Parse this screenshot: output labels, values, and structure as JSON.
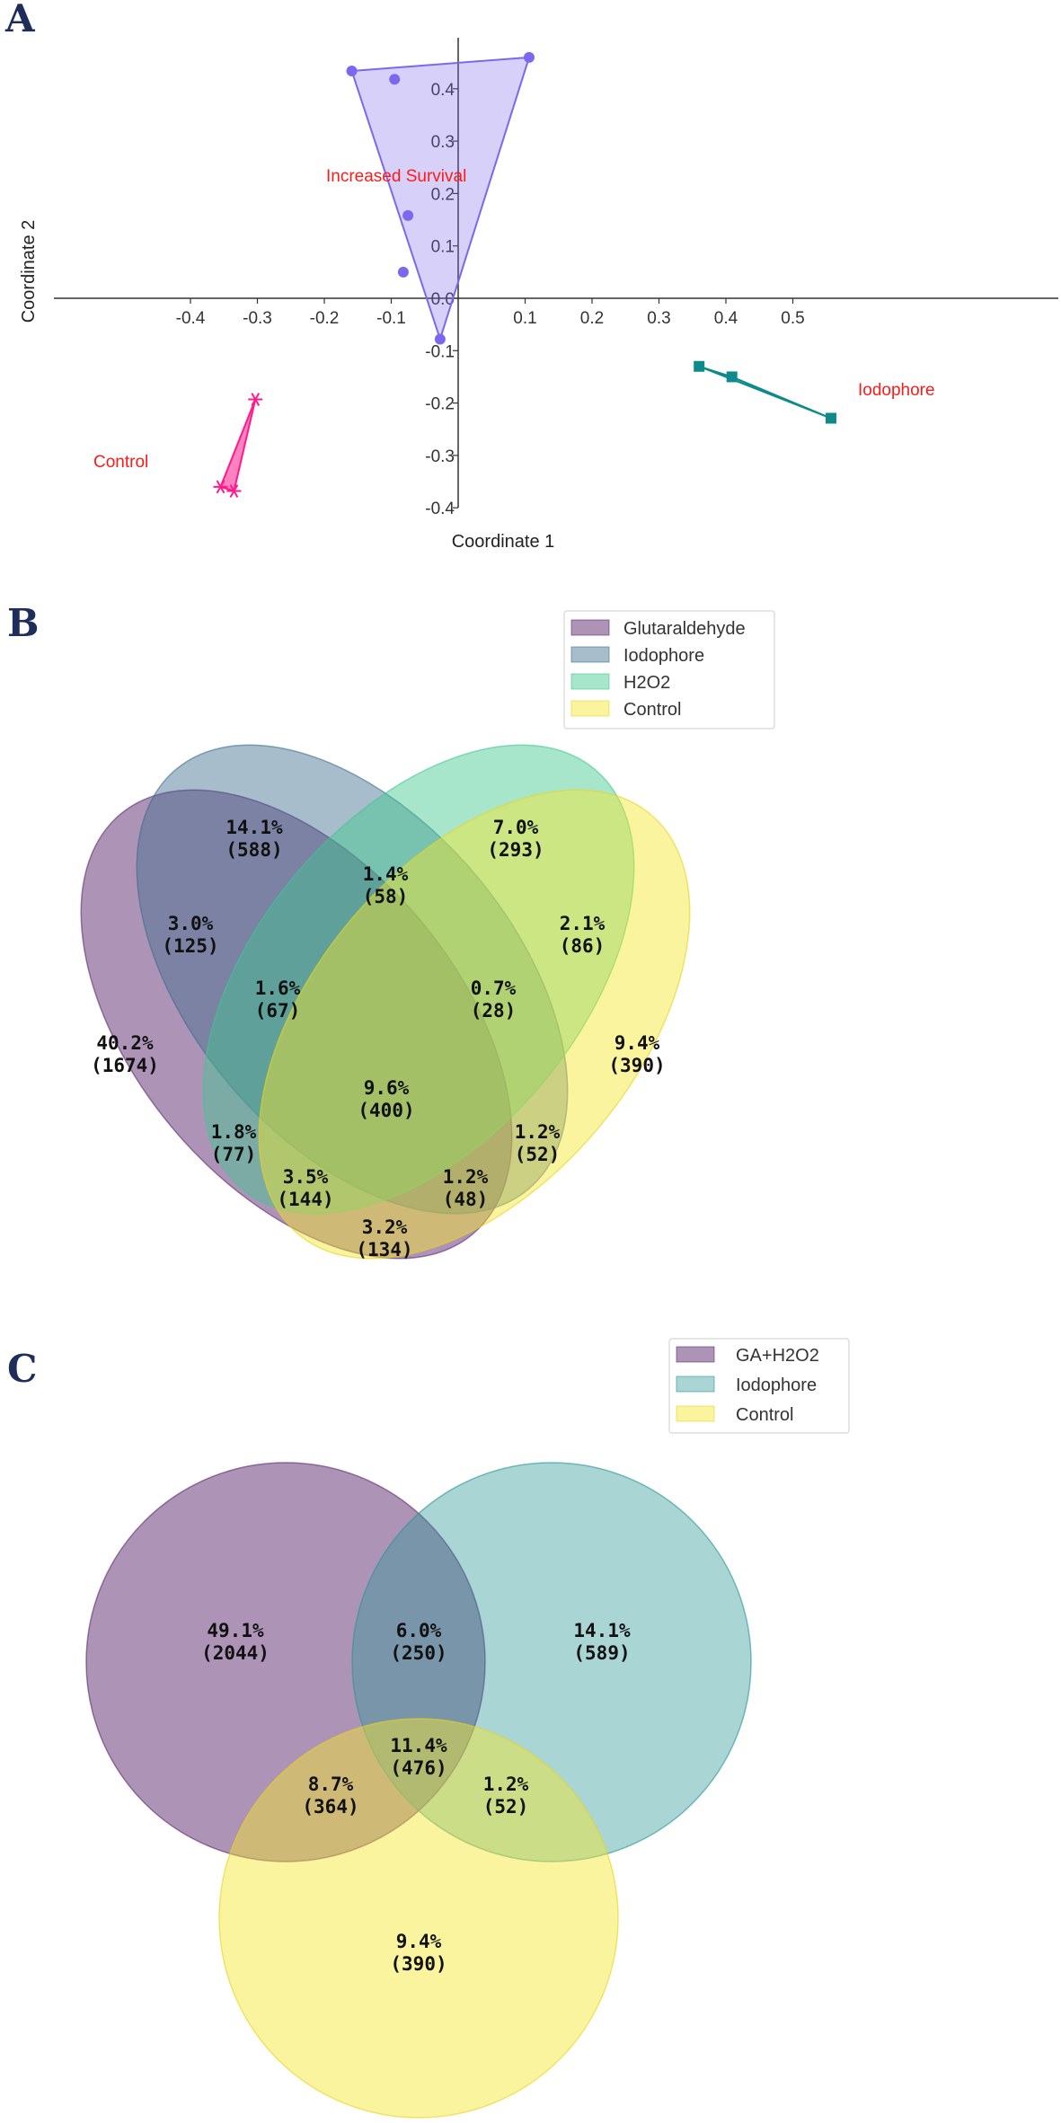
{
  "panels": {
    "a": "A",
    "b": "B",
    "c": "C"
  },
  "chart_data": [
    {
      "type": "scatter",
      "panel": "A",
      "xlabel": "Coordinate 1",
      "ylabel": "Coordinate 2",
      "xlim": [
        -0.4,
        0.6
      ],
      "ylim": [
        -0.4,
        0.46
      ],
      "xticks": [
        -0.4,
        -0.3,
        -0.2,
        -0.1,
        0.1,
        0.2,
        0.3,
        0.4,
        0.5
      ],
      "xtick_labels": [
        "-0.4",
        "-0.3",
        "-0.2",
        "-0.1",
        "0.1",
        "0.2",
        "0.3",
        "0.4",
        "0.5"
      ],
      "yticks": [
        -0.4,
        -0.3,
        -0.2,
        -0.1,
        0.0,
        0.1,
        0.2,
        0.3,
        0.4
      ],
      "ytick_labels": [
        "-0.4",
        "-0.3",
        "-0.2",
        "-0.1",
        "0.0",
        "0.1",
        "0.2",
        "0.3",
        "0.4"
      ],
      "series": [
        {
          "name": "Increased Survival",
          "marker": "circle",
          "color": "#7b68ee",
          "fill": "#7b68ee",
          "x": [
            -0.159,
            -0.095,
            -0.075,
            -0.082,
            -0.027,
            0.106
          ],
          "y": [
            0.434,
            0.418,
            0.158,
            0.05,
            -0.078,
            0.46
          ],
          "hull": [
            0,
            5,
            4
          ]
        },
        {
          "name": "Control",
          "marker": "asterisk",
          "color": "#ff1a8c",
          "fill": "#ff1a8c",
          "x": [
            -0.303,
            -0.355,
            -0.335
          ],
          "y": [
            -0.193,
            -0.36,
            -0.368
          ],
          "hull": [
            0,
            1,
            2
          ]
        },
        {
          "name": "Iodophore",
          "marker": "square",
          "color": "#0e8a8a",
          "fill": "#0e8a8a",
          "x": [
            0.36,
            0.409,
            0.557
          ],
          "y": [
            -0.13,
            -0.15,
            -0.229
          ],
          "hull": [
            0,
            1,
            2
          ]
        }
      ]
    },
    {
      "type": "venn",
      "panel": "B",
      "sets": [
        {
          "name": "Glutaraldehyde",
          "color": "#5b2a70",
          "alpha": 0.5
        },
        {
          "name": "Iodophore",
          "color": "#3f6d8d",
          "alpha": 0.45
        },
        {
          "name": "H2O2",
          "color": "#3fc78f",
          "alpha": 0.45
        },
        {
          "name": "Control",
          "color": "#f7e62a",
          "alpha": 0.45
        }
      ],
      "regions": [
        {
          "pct": "14.1%",
          "count": "(588)"
        },
        {
          "pct": "7.0%",
          "count": "(293)"
        },
        {
          "pct": "1.4%",
          "count": "(58)"
        },
        {
          "pct": "3.0%",
          "count": "(125)"
        },
        {
          "pct": "2.1%",
          "count": "(86)"
        },
        {
          "pct": "1.6%",
          "count": "(67)"
        },
        {
          "pct": "0.7%",
          "count": "(28)"
        },
        {
          "pct": "40.2%",
          "count": "(1674)"
        },
        {
          "pct": "9.6%",
          "count": "(400)"
        },
        {
          "pct": "9.4%",
          "count": "(390)"
        },
        {
          "pct": "1.8%",
          "count": "(77)"
        },
        {
          "pct": "1.2%",
          "count": "(52)"
        },
        {
          "pct": "3.5%",
          "count": "(144)"
        },
        {
          "pct": "1.2%",
          "count": "(48)"
        },
        {
          "pct": "3.2%",
          "count": "(134)"
        }
      ]
    },
    {
      "type": "venn",
      "panel": "C",
      "sets": [
        {
          "name": "GA+H2O2",
          "color": "#5b2a70",
          "alpha": 0.5
        },
        {
          "name": "Iodophore",
          "color": "#2a9595",
          "alpha": 0.4
        },
        {
          "name": "Control",
          "color": "#f7e62a",
          "alpha": 0.45
        }
      ],
      "regions": [
        {
          "pct": "49.1%",
          "count": "(2044)"
        },
        {
          "pct": "6.0%",
          "count": "(250)"
        },
        {
          "pct": "14.1%",
          "count": "(589)"
        },
        {
          "pct": "11.4%",
          "count": "(476)"
        },
        {
          "pct": "8.7%",
          "count": "(364)"
        },
        {
          "pct": "1.2%",
          "count": "(52)"
        },
        {
          "pct": "9.4%",
          "count": "(390)"
        }
      ]
    }
  ]
}
